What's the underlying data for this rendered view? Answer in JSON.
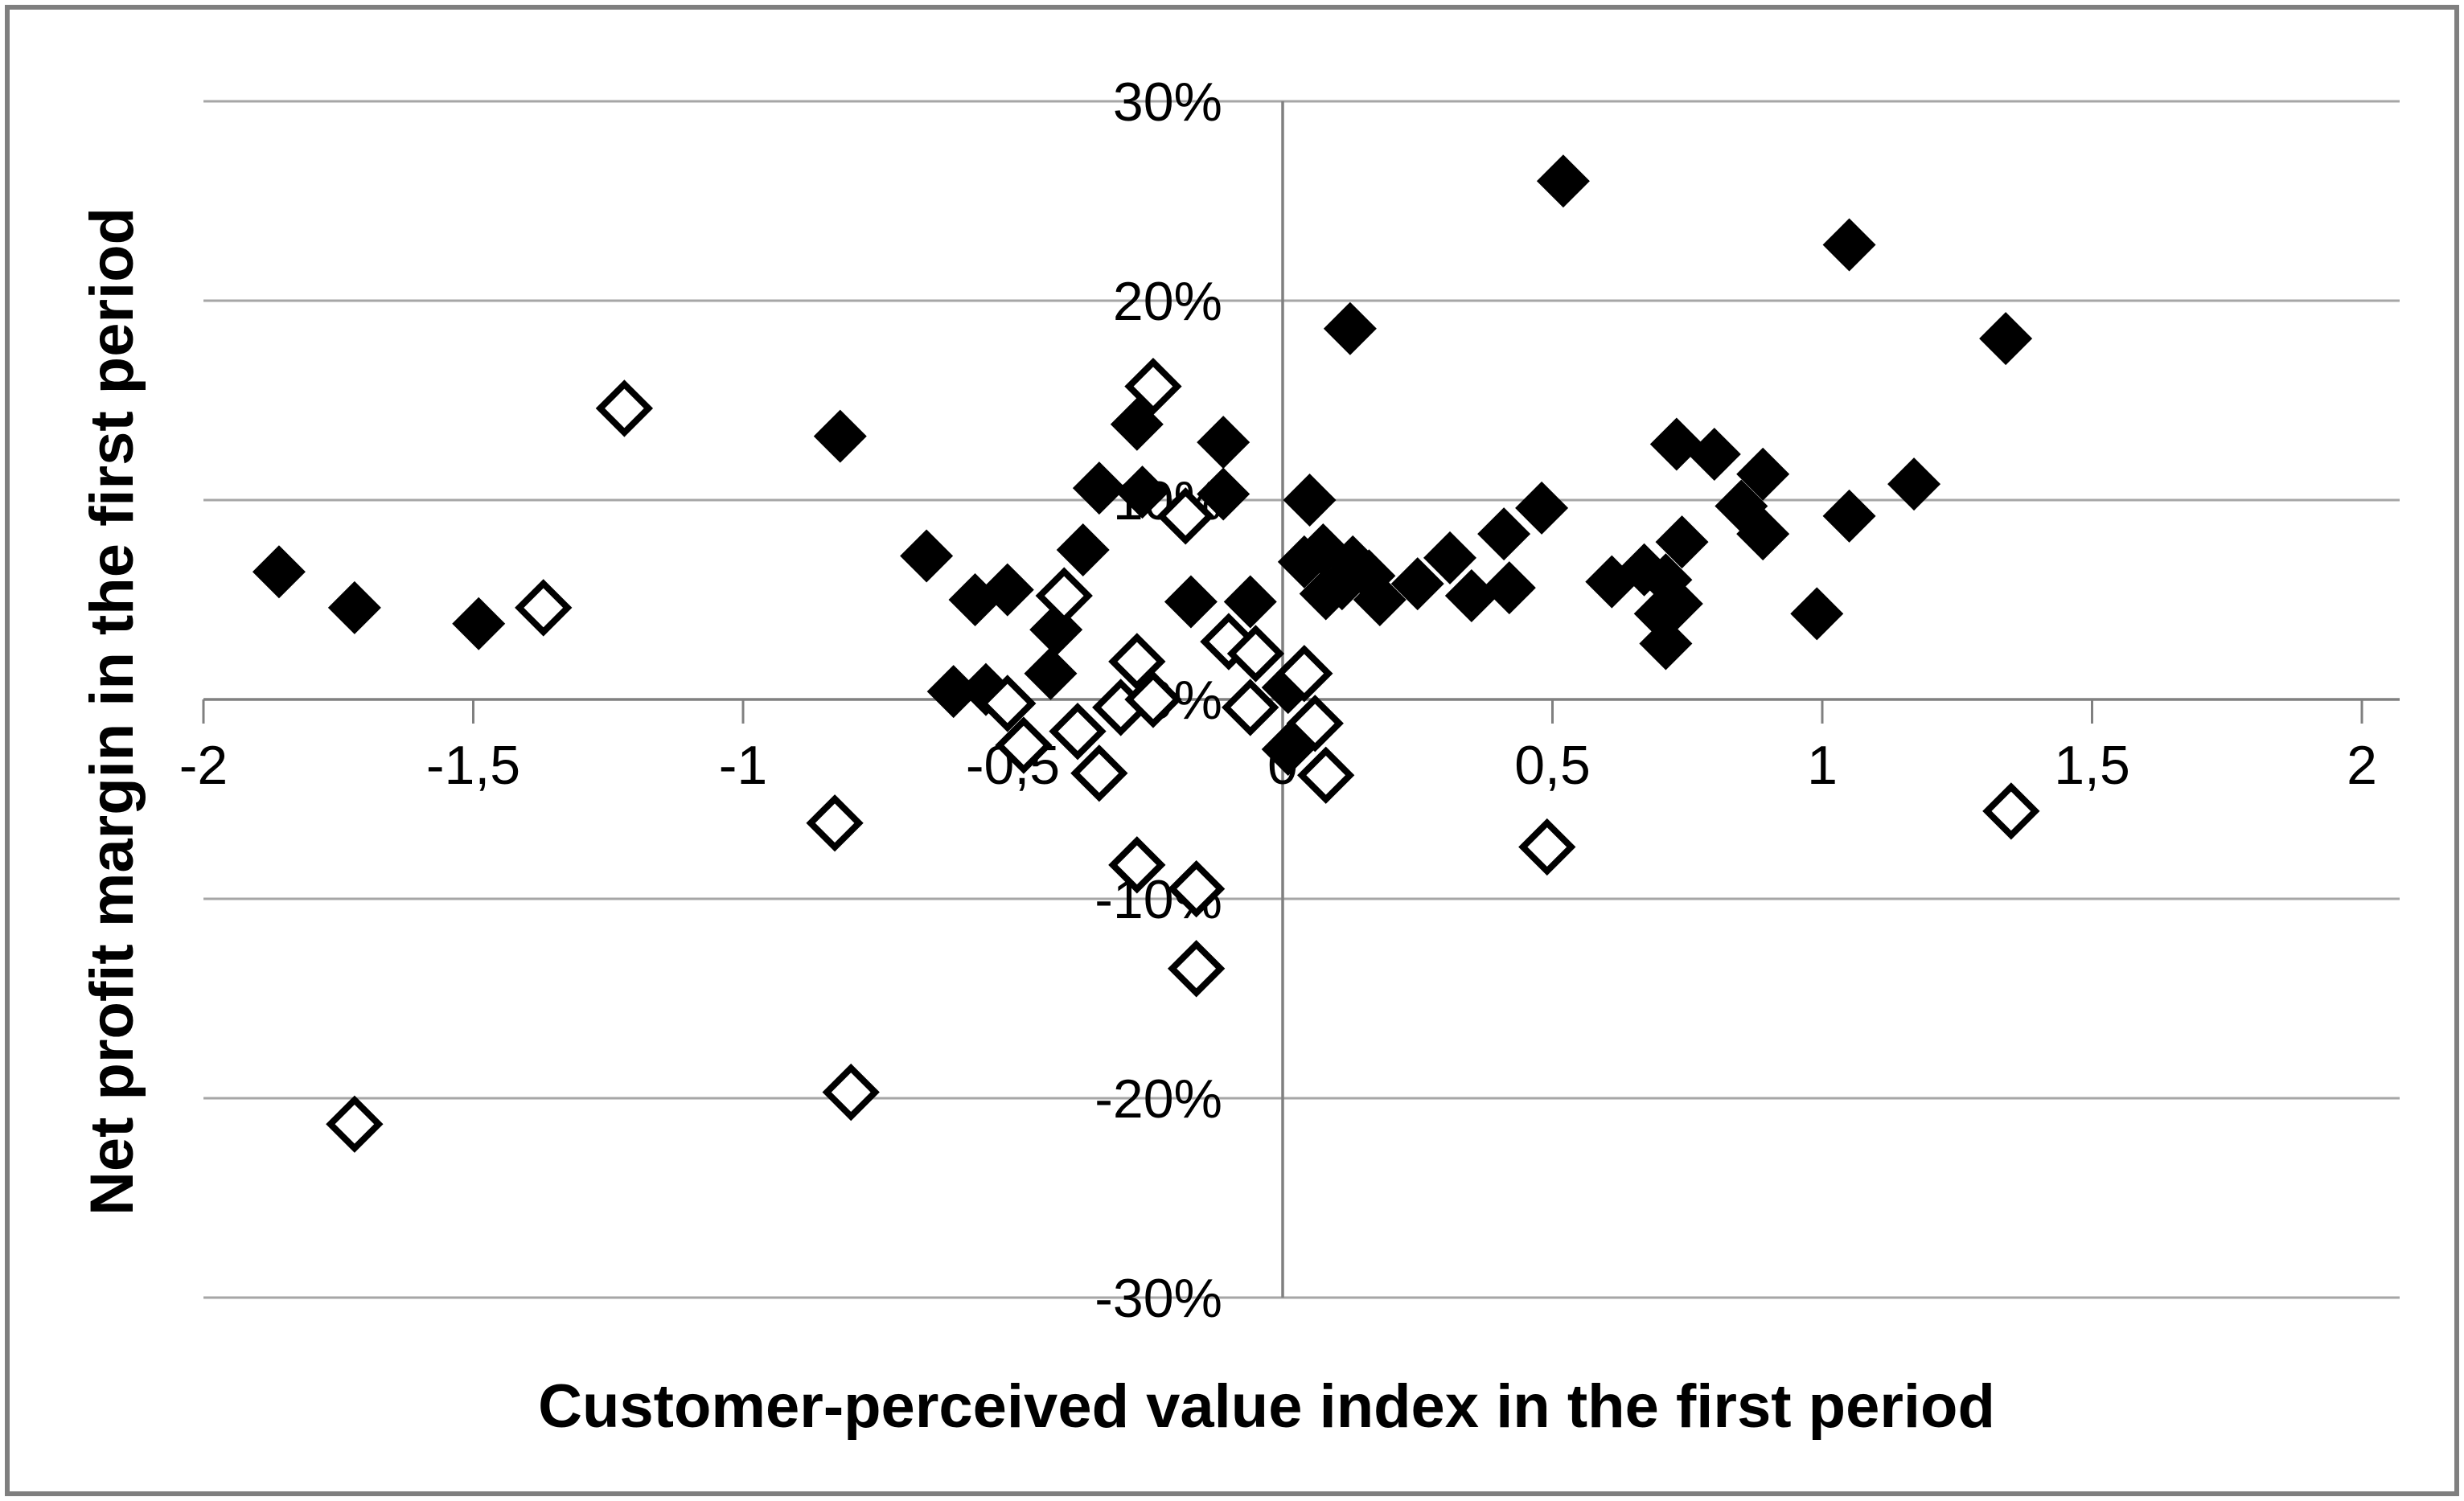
{
  "colors": {
    "frame": "#7f7f7f",
    "gridline": "#a6a6a6",
    "axis": "#808080",
    "marker": "#000000"
  },
  "chart_data": {
    "type": "scatter",
    "title": "",
    "xlabel": "Customer-perceived value index in the first period",
    "ylabel": "Net profit margin in the first period",
    "xlim": [
      -2,
      2.07
    ],
    "ylim": [
      -30,
      30
    ],
    "grid": "horizontal",
    "legend": "none",
    "x_ticks": [
      {
        "v": -2,
        "label": "-2"
      },
      {
        "v": -1.5,
        "label": "-1,5"
      },
      {
        "v": -1,
        "label": "-1"
      },
      {
        "v": -0.5,
        "label": "-0,5"
      },
      {
        "v": 0,
        "label": "0"
      },
      {
        "v": 0.5,
        "label": "0,5"
      },
      {
        "v": 1,
        "label": "1"
      },
      {
        "v": 1.5,
        "label": "1,5"
      },
      {
        "v": 2,
        "label": "2"
      }
    ],
    "y_ticks": [
      {
        "v": 30,
        "label": "30%"
      },
      {
        "v": 20,
        "label": "20%"
      },
      {
        "v": 10,
        "label": "10%"
      },
      {
        "v": 0,
        "label": "0%"
      },
      {
        "v": -10,
        "label": "-10%"
      },
      {
        "v": -20,
        "label": "-20%"
      },
      {
        "v": -30,
        "label": "-30%"
      }
    ],
    "series": [
      {
        "name": "filled-diamonds",
        "marker": "filled",
        "points": [
          [
            -1.86,
            6.4
          ],
          [
            -1.72,
            4.6
          ],
          [
            -1.49,
            3.8
          ],
          [
            -0.82,
            13.2
          ],
          [
            -0.66,
            7.2
          ],
          [
            -0.57,
            5.0
          ],
          [
            -0.51,
            5.5
          ],
          [
            -0.61,
            0.4
          ],
          [
            -0.55,
            0.5
          ],
          [
            -0.43,
            1.3
          ],
          [
            -0.42,
            3.5
          ],
          [
            -0.37,
            7.5
          ],
          [
            -0.34,
            10.6
          ],
          [
            -0.26,
            10.4
          ],
          [
            -0.27,
            13.8
          ],
          [
            -0.11,
            12.9
          ],
          [
            -0.11,
            10.3
          ],
          [
            -0.17,
            4.9
          ],
          [
            -0.06,
            4.9
          ],
          [
            0.01,
            0.6
          ],
          [
            0.01,
            -2.5
          ],
          [
            0.05,
            10.0
          ],
          [
            0.04,
            6.9
          ],
          [
            0.075,
            7.5
          ],
          [
            0.11,
            5.8
          ],
          [
            0.13,
            6.9
          ],
          [
            0.16,
            6.2
          ],
          [
            0.08,
            5.3
          ],
          [
            0.18,
            5.0
          ],
          [
            0.25,
            5.8
          ],
          [
            0.31,
            7.1
          ],
          [
            0.35,
            5.2
          ],
          [
            0.41,
            8.3
          ],
          [
            0.48,
            9.6
          ],
          [
            0.42,
            5.6
          ],
          [
            0.125,
            18.6
          ],
          [
            0.52,
            26.0
          ],
          [
            0.61,
            5.9
          ],
          [
            0.67,
            6.5
          ],
          [
            0.71,
            6.0
          ],
          [
            0.73,
            4.8
          ],
          [
            0.7,
            4.3
          ],
          [
            0.71,
            2.8
          ],
          [
            0.74,
            7.9
          ],
          [
            0.73,
            12.8
          ],
          [
            0.8,
            12.3
          ],
          [
            0.89,
            11.3
          ],
          [
            0.85,
            9.7
          ],
          [
            0.89,
            8.3
          ],
          [
            0.99,
            4.3
          ],
          [
            1.05,
            9.2
          ],
          [
            1.17,
            10.8
          ],
          [
            1.05,
            22.8
          ],
          [
            1.34,
            18.1
          ]
        ]
      },
      {
        "name": "open-diamonds",
        "marker": "open",
        "points": [
          [
            -1.72,
            -21.3
          ],
          [
            -1.37,
            4.6
          ],
          [
            -1.22,
            14.6
          ],
          [
            -0.83,
            -6.2
          ],
          [
            -0.8,
            -19.7
          ],
          [
            -0.51,
            -0.2
          ],
          [
            -0.48,
            -2.3
          ],
          [
            -0.405,
            5.2
          ],
          [
            -0.38,
            -1.6
          ],
          [
            -0.34,
            -3.7
          ],
          [
            -0.3,
            -0.4
          ],
          [
            -0.27,
            1.9
          ],
          [
            -0.24,
            0.0
          ],
          [
            -0.27,
            -8.3
          ],
          [
            -0.16,
            -9.5
          ],
          [
            -0.16,
            -13.5
          ],
          [
            -0.24,
            15.7
          ],
          [
            -0.18,
            9.2
          ],
          [
            -0.1,
            2.9
          ],
          [
            -0.05,
            2.3
          ],
          [
            -0.06,
            -0.4
          ],
          [
            0.04,
            1.3
          ],
          [
            0.06,
            -1.2
          ],
          [
            0.08,
            -3.8
          ],
          [
            0.49,
            -7.4
          ],
          [
            1.35,
            -5.6
          ]
        ]
      }
    ]
  }
}
